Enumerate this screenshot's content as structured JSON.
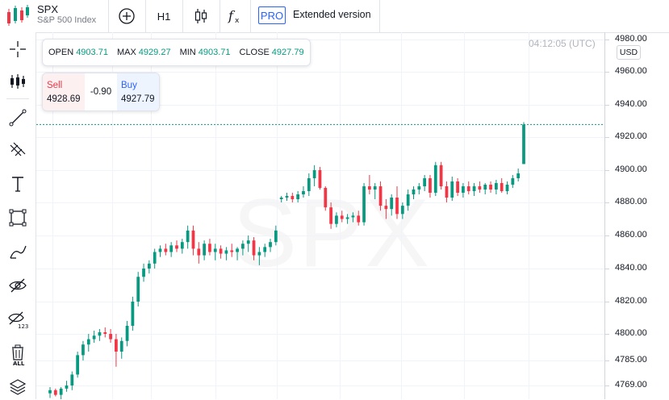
{
  "header": {
    "symbol": "SPX",
    "symbol_name": "S&P 500 Index",
    "interval": "H1",
    "pro_badge": "PRO",
    "extended_label": "Extended version"
  },
  "toolbar_icons": [
    "add-symbol-icon",
    "candles-icon",
    "indicators-icon"
  ],
  "left_tools": [
    "crosshair-icon",
    "chart-style-icon",
    "trend-line-icon",
    "fib-tool-icon",
    "text-tool-icon",
    "rectangle-icon",
    "brush-icon",
    "hide-drawings-icon",
    "measure-icon",
    "trash-icon",
    "layers-icon"
  ],
  "ohlc": {
    "open_label": "OPEN",
    "open": "4903.71",
    "max_label": "MAX",
    "max": "4929.27",
    "min_label": "MIN",
    "min": "4903.71",
    "close_label": "CLOSE",
    "close": "4927.79"
  },
  "trade": {
    "sell_label": "Sell",
    "sell_price": "4928.69",
    "spread": "-0.90",
    "buy_label": "Buy",
    "buy_price": "4927.79"
  },
  "clock": "04:12:05 (UTC)",
  "currency": "USD",
  "watermark": "SPX",
  "colors": {
    "up": "#089981",
    "down": "#f23645",
    "accent": "#2962ff",
    "last_price_line": "#089981"
  },
  "chart_data": {
    "type": "candlestick",
    "y_ticks": [
      "4980.00",
      "4960.00",
      "4940.00",
      "4920.00",
      "4900.00",
      "4880.00",
      "4860.00",
      "4840.00",
      "4820.00",
      "4800.00",
      "4785.00",
      "4769.00"
    ],
    "y_tick_values": [
      4980,
      4960,
      4940,
      4920,
      4900,
      4880,
      4860,
      4840,
      4820,
      4800,
      4785,
      4769
    ],
    "last_price": 4927.79,
    "candles": [
      [
        4764,
        4768,
        4761,
        4766
      ],
      [
        4766,
        4767,
        4762,
        4763
      ],
      [
        4763,
        4768,
        4760,
        4767
      ],
      [
        4767,
        4772,
        4765,
        4769
      ],
      [
        4769,
        4778,
        4766,
        4776
      ],
      [
        4776,
        4790,
        4774,
        4788
      ],
      [
        4788,
        4796,
        4785,
        4794
      ],
      [
        4794,
        4800,
        4790,
        4797
      ],
      [
        4797,
        4802,
        4795,
        4799
      ],
      [
        4799,
        4803,
        4796,
        4801
      ],
      [
        4801,
        4804,
        4798,
        4800
      ],
      [
        4800,
        4803,
        4795,
        4797
      ],
      [
        4797,
        4800,
        4781,
        4790
      ],
      [
        4790,
        4798,
        4786,
        4796
      ],
      [
        4796,
        4808,
        4793,
        4805
      ],
      [
        4805,
        4823,
        4802,
        4820
      ],
      [
        4820,
        4838,
        4817,
        4835
      ],
      [
        4835,
        4843,
        4832,
        4840
      ],
      [
        4840,
        4845,
        4837,
        4843
      ],
      [
        4843,
        4852,
        4840,
        4850
      ],
      [
        4850,
        4854,
        4847,
        4852
      ],
      [
        4852,
        4855,
        4848,
        4850
      ],
      [
        4850,
        4856,
        4847,
        4854
      ],
      [
        4854,
        4857,
        4850,
        4852
      ],
      [
        4852,
        4858,
        4849,
        4856
      ],
      [
        4856,
        4866,
        4852,
        4863
      ],
      [
        4863,
        4866,
        4848,
        4852
      ],
      [
        4852,
        4856,
        4843,
        4848
      ],
      [
        4848,
        4857,
        4845,
        4855
      ],
      [
        4855,
        4858,
        4848,
        4850
      ],
      [
        4850,
        4855,
        4845,
        4852
      ],
      [
        4852,
        4854,
        4846,
        4849
      ],
      [
        4849,
        4853,
        4845,
        4851
      ],
      [
        4851,
        4855,
        4847,
        4850
      ],
      [
        4850,
        4853,
        4845,
        4852
      ],
      [
        4852,
        4857,
        4848,
        4855
      ],
      [
        4855,
        4860,
        4850,
        4857
      ],
      [
        4857,
        4859,
        4845,
        4848
      ],
      [
        4848,
        4853,
        4842,
        4850
      ],
      [
        4850,
        4855,
        4847,
        4853
      ],
      [
        4853,
        4858,
        4850,
        4856
      ],
      [
        4856,
        4866,
        4854,
        4863
      ],
      [
        4882,
        4884,
        4880,
        4883
      ],
      [
        4883,
        4886,
        4881,
        4884
      ],
      [
        4884,
        4886,
        4880,
        4882
      ],
      [
        4882,
        4887,
        4880,
        4885
      ],
      [
        4885,
        4890,
        4883,
        4887
      ],
      [
        4887,
        4898,
        4884,
        4895
      ],
      [
        4895,
        4903,
        4890,
        4900
      ],
      [
        4900,
        4902,
        4888,
        4889
      ],
      [
        4889,
        4890,
        4875,
        4877
      ],
      [
        4877,
        4880,
        4864,
        4867
      ],
      [
        4867,
        4874,
        4865,
        4872
      ],
      [
        4872,
        4875,
        4868,
        4870
      ],
      [
        4870,
        4873,
        4867,
        4871
      ],
      [
        4871,
        4874,
        4868,
        4872
      ],
      [
        4872,
        4875,
        4866,
        4868
      ],
      [
        4868,
        4892,
        4866,
        4890
      ],
      [
        4890,
        4897,
        4885,
        4888
      ],
      [
        4888,
        4892,
        4882,
        4890
      ],
      [
        4890,
        4893,
        4875,
        4878
      ],
      [
        4878,
        4882,
        4870,
        4876
      ],
      [
        4876,
        4885,
        4872,
        4883
      ],
      [
        4883,
        4890,
        4870,
        4873
      ],
      [
        4873,
        4880,
        4870,
        4878
      ],
      [
        4878,
        4888,
        4875,
        4885
      ],
      [
        4885,
        4890,
        4882,
        4888
      ],
      [
        4888,
        4892,
        4885,
        4890
      ],
      [
        4890,
        4897,
        4887,
        4895
      ],
      [
        4895,
        4897,
        4883,
        4886
      ],
      [
        4886,
        4905,
        4884,
        4903
      ],
      [
        4903,
        4905,
        4888,
        4890
      ],
      [
        4890,
        4893,
        4880,
        4883
      ],
      [
        4883,
        4896,
        4881,
        4893
      ],
      [
        4893,
        4895,
        4884,
        4886
      ],
      [
        4886,
        4892,
        4883,
        4890
      ],
      [
        4890,
        4893,
        4885,
        4887
      ],
      [
        4887,
        4892,
        4884,
        4890
      ],
      [
        4890,
        4893,
        4886,
        4888
      ],
      [
        4888,
        4892,
        4885,
        4891
      ],
      [
        4891,
        4893,
        4886,
        4888
      ],
      [
        4888,
        4894,
        4885,
        4892
      ],
      [
        4892,
        4895,
        4886,
        4887
      ],
      [
        4887,
        4893,
        4885,
        4891
      ],
      [
        4891,
        4897,
        4889,
        4895
      ],
      [
        4895,
        4901,
        4893,
        4898
      ],
      [
        4903.71,
        4929.27,
        4903.71,
        4927.79
      ]
    ]
  }
}
